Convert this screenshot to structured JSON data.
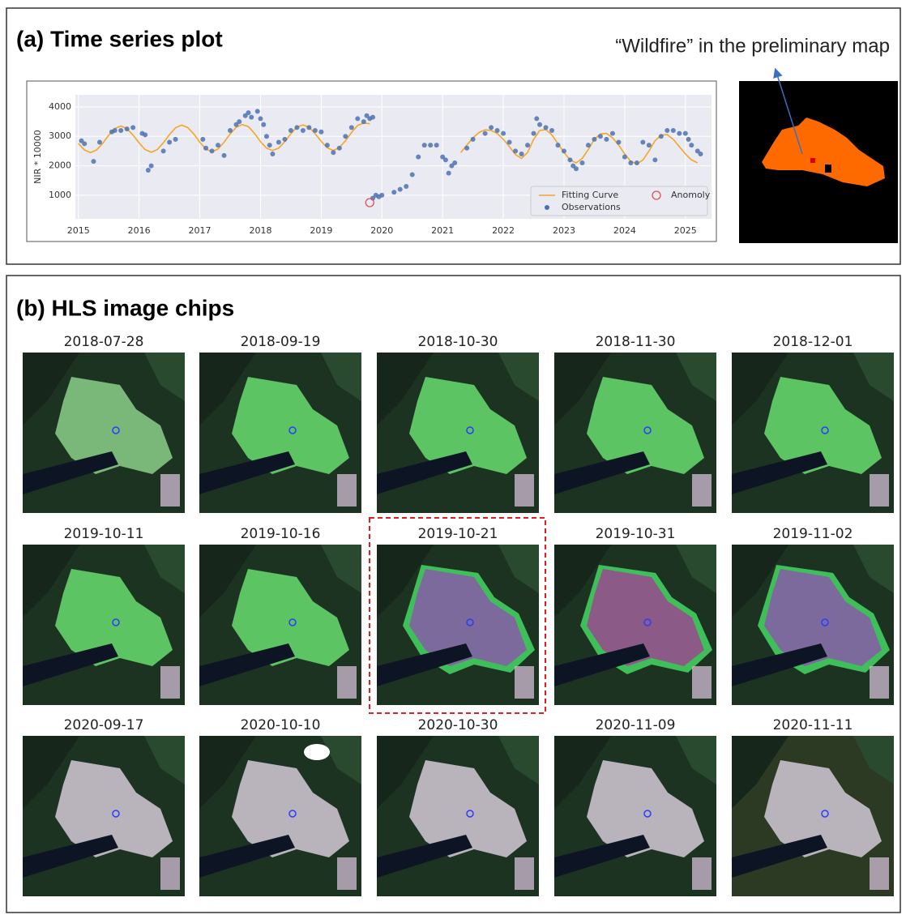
{
  "panel_a": {
    "title": "(a) Time series plot",
    "map_annotation": "“Wildfire” in the preliminary map"
  },
  "chart_data": {
    "type": "scatter",
    "ylabel": "NIR * 10000",
    "xlim": [
      2014.95,
      2025.43
    ],
    "ylim": [
      200,
      4410
    ],
    "xticks": [
      2015,
      2016,
      2017,
      2018,
      2019,
      2020,
      2021,
      2022,
      2023,
      2024,
      2025
    ],
    "yticks": [
      1000,
      2000,
      3000,
      4000
    ],
    "grid": true,
    "legend": "lower right",
    "series": [
      {
        "name": "Fitting Curve",
        "type": "line",
        "color": "#f5a623",
        "x": [
          2015.0,
          2015.1,
          2015.2,
          2015.3,
          2015.4,
          2015.5,
          2015.6,
          2015.7,
          2015.8,
          2015.9,
          2016.0,
          2016.1,
          2016.2,
          2016.3,
          2016.4,
          2016.5,
          2016.6,
          2016.7,
          2016.8,
          2016.9,
          2017.0,
          2017.1,
          2017.2,
          2017.3,
          2017.4,
          2017.5,
          2017.6,
          2017.7,
          2017.8,
          2017.9,
          2018.0,
          2018.1,
          2018.2,
          2018.3,
          2018.4,
          2018.5,
          2018.6,
          2018.7,
          2018.8,
          2018.9,
          2019.0,
          2019.1,
          2019.2,
          2019.3,
          2019.4,
          2019.5,
          2019.6,
          2019.7,
          2019.8,
          2019.9,
          2020.0,
          2020.1,
          2020.2,
          2020.3,
          2020.4,
          2020.5,
          2020.6,
          2020.7,
          2020.8,
          2020.9,
          2021.0,
          2021.1,
          2021.2,
          2021.3,
          2021.4,
          2021.5,
          2021.6,
          2021.7,
          2021.8,
          2021.9,
          2022.0,
          2022.1,
          2022.2,
          2022.3,
          2022.4,
          2022.5,
          2022.6,
          2022.7,
          2022.8,
          2022.9,
          2023.0,
          2023.1,
          2023.2,
          2023.3,
          2023.4,
          2023.5,
          2023.6,
          2023.7,
          2023.8,
          2023.9,
          2024.0,
          2024.1,
          2024.2,
          2024.3,
          2024.4,
          2024.5,
          2024.6,
          2024.7,
          2024.8,
          2024.9,
          2025.0,
          2025.1,
          2025.2
        ],
        "values": [
          2761,
          2536,
          2450,
          2536,
          2761,
          3039,
          3264,
          3350,
          3264,
          3039,
          2780,
          2550,
          2460,
          2550,
          2780,
          3060,
          3290,
          3380,
          3300,
          3080,
          2800,
          2570,
          2480,
          2570,
          2800,
          3080,
          3310,
          3400,
          3330,
          3100,
          2820,
          2600,
          2520,
          2600,
          2820,
          3090,
          3310,
          3390,
          3310,
          3090,
          2830,
          2610,
          2520,
          2620,
          2850,
          3130,
          3370,
          3450,
          3430,
          null,
          null,
          null,
          null,
          null,
          null,
          null,
          null,
          null,
          null,
          null,
          null,
          null,
          null,
          2450,
          2700,
          2950,
          3130,
          3220,
          3200,
          3100,
          2900,
          2650,
          2380,
          2250,
          2450,
          2900,
          3200,
          3230,
          3050,
          2750,
          2450,
          2200,
          2100,
          2250,
          2550,
          2900,
          3080,
          3100,
          2950,
          2700,
          2400,
          2150,
          2060,
          2200,
          2500,
          2850,
          3040,
          3060,
          2900,
          2650,
          2400,
          2200,
          2100
        ]
      },
      {
        "name": "Observations",
        "type": "scatter",
        "color": "#4c72b0",
        "x": [
          2015.05,
          2015.1,
          2015.25,
          2015.35,
          2015.55,
          2015.6,
          2015.7,
          2015.8,
          2015.9,
          2016.05,
          2016.1,
          2016.15,
          2016.2,
          2016.4,
          2016.5,
          2016.6,
          2017.05,
          2017.1,
          2017.2,
          2017.3,
          2017.4,
          2017.5,
          2017.6,
          2017.65,
          2017.75,
          2017.8,
          2017.85,
          2017.95,
          2018.0,
          2018.05,
          2018.1,
          2018.15,
          2018.2,
          2018.3,
          2018.4,
          2018.5,
          2018.6,
          2018.7,
          2018.8,
          2018.9,
          2019.0,
          2019.1,
          2019.2,
          2019.3,
          2019.4,
          2019.5,
          2019.6,
          2019.7,
          2019.75,
          2019.8,
          2019.85,
          2019.85,
          2019.9,
          2019.95,
          2020.0,
          2020.2,
          2020.3,
          2020.4,
          2020.5,
          2020.6,
          2020.7,
          2020.8,
          2020.9,
          2021.0,
          2021.05,
          2021.1,
          2021.15,
          2021.2,
          2021.4,
          2021.5,
          2021.7,
          2021.8,
          2021.9,
          2022.0,
          2022.1,
          2022.2,
          2022.3,
          2022.4,
          2022.5,
          2022.55,
          2022.6,
          2022.7,
          2022.8,
          2022.9,
          2023.0,
          2023.1,
          2023.15,
          2023.2,
          2023.3,
          2023.4,
          2023.5,
          2023.6,
          2023.7,
          2023.8,
          2023.9,
          2024.0,
          2024.1,
          2024.2,
          2024.3,
          2024.4,
          2024.5,
          2024.6,
          2024.7,
          2024.8,
          2024.9,
          2025.0,
          2025.05,
          2025.1,
          2025.2,
          2025.25
        ],
        "values": [
          2850,
          2750,
          2150,
          2800,
          3150,
          3200,
          3200,
          3250,
          3300,
          3100,
          3050,
          1850,
          2000,
          2500,
          2800,
          2900,
          2900,
          2600,
          2500,
          2700,
          2350,
          3200,
          3400,
          3500,
          3700,
          3800,
          3650,
          3850,
          3600,
          3400,
          3000,
          2700,
          2400,
          2800,
          2900,
          3200,
          3300,
          3200,
          3300,
          3200,
          3150,
          2700,
          2450,
          2600,
          3000,
          3300,
          3600,
          3500,
          3700,
          3600,
          3650,
          900,
          1000,
          950,
          1000,
          1100,
          1200,
          1300,
          1700,
          2300,
          2700,
          2700,
          2700,
          2300,
          2200,
          1750,
          2000,
          2100,
          2600,
          2900,
          3100,
          3300,
          3200,
          3100,
          2800,
          2500,
          2400,
          2700,
          3100,
          3600,
          3400,
          3300,
          3200,
          2700,
          2500,
          2200,
          2000,
          1900,
          2100,
          2700,
          2900,
          3000,
          2900,
          3100,
          2800,
          2300,
          2100,
          2100,
          2800,
          2700,
          2200,
          3000,
          3200,
          3200,
          3100,
          3100,
          2900,
          2700,
          2500,
          2400
        ]
      },
      {
        "name": "Anomoly",
        "type": "open-circle",
        "color": "#d9534f",
        "x": [
          2019.8
        ],
        "values": [
          750
        ]
      }
    ]
  },
  "panel_b": {
    "title": "(b) HLS image chips",
    "chips": [
      "2018-07-28",
      "2018-09-19",
      "2018-10-30",
      "2018-11-30",
      "2018-12-01",
      "2019-10-11",
      "2019-10-16",
      "2019-10-21",
      "2019-10-31",
      "2019-11-02",
      "2020-09-17",
      "2020-10-10",
      "2020-10-30",
      "2020-11-09",
      "2020-11-11"
    ]
  }
}
